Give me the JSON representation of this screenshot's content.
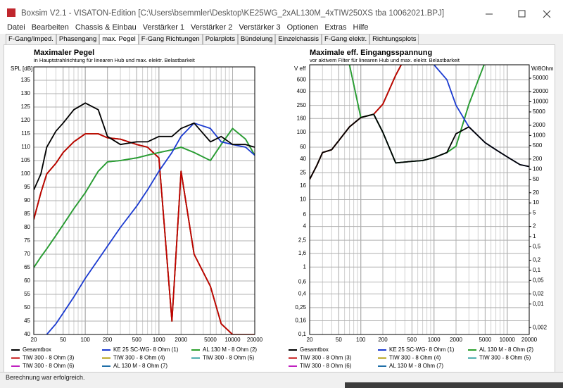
{
  "window_title": "Boxsim V2.1 - VISATON-Edition [C:\\Users\\bsemmler\\Desktop\\KE25WG_2xAL130M_4xTIW250XS tba 10062021.BPJ]",
  "menu": [
    "Datei",
    "Bearbeiten",
    "Chassis & Einbau",
    "Verstärker 1",
    "Verstärker 2",
    "Verstärker 3",
    "Optionen",
    "Extras",
    "Hilfe"
  ],
  "tabs": [
    "F-Gang/Imped.",
    "Phasengang",
    "max. Pegel",
    "F-Gang Richtungen",
    "Polarplots",
    "Bündelung",
    "Einzelchassis",
    "F-Gang elektr.",
    "Richtungsplots"
  ],
  "status": "Berechnung war erfolgreich.",
  "chart_data": [
    {
      "type": "line",
      "title": "Maximaler Pegel",
      "subtitle": "in Hauptstrahlrichtung für linearen Hub und max. elektr. Belastbarkeit",
      "y_label": "SPL [dB]",
      "xlog": true,
      "ylog": false,
      "grid": true,
      "xlim": [
        20,
        20000
      ],
      "xticks": [
        20,
        50,
        100,
        200,
        500,
        1000,
        2000,
        5000,
        10000,
        20000
      ],
      "ylim": [
        40,
        140
      ],
      "yticks": [
        40,
        45,
        50,
        55,
        60,
        65,
        70,
        75,
        80,
        85,
        90,
        95,
        100,
        105,
        110,
        115,
        120,
        125,
        130,
        135
      ],
      "x": [
        20,
        25,
        30,
        40,
        50,
        70,
        100,
        150,
        200,
        300,
        500,
        700,
        1000,
        1500,
        2000,
        3000,
        5000,
        7000,
        10000,
        15000,
        20000
      ],
      "series": [
        {
          "name": "Gesamtbox",
          "color": "#000000",
          "values": [
            94,
            100,
            110,
            116,
            119,
            124,
            126.5,
            124,
            114,
            111,
            112,
            112,
            114,
            114,
            117,
            119,
            112,
            114,
            111,
            111,
            110
          ]
        },
        {
          "name": "KE 25 SC-WG- 8 Ohm (1)",
          "color": "#1a3ad0",
          "values": [
            null,
            null,
            40,
            44,
            48,
            54,
            61,
            68,
            73,
            80,
            88,
            94,
            101,
            108,
            114,
            119,
            117,
            112,
            111,
            110,
            107
          ]
        },
        {
          "name": "AL 130 M - 8 Ohm (2)",
          "color": "#2ca02c",
          "values": [
            65,
            69,
            72,
            77,
            81,
            87,
            93,
            101,
            104.5,
            105,
            106,
            107,
            108,
            109,
            110,
            108,
            105,
            111,
            117,
            113,
            107
          ]
        },
        {
          "name": "TIW 300 - 8 Ohm (3)",
          "color": "#c00000",
          "values": [
            83,
            93,
            100,
            104,
            108,
            112,
            115,
            115,
            113.5,
            113,
            111,
            110,
            106,
            45,
            101,
            70,
            58,
            44,
            40,
            40,
            40
          ]
        },
        {
          "name": "TIW 300 - 8 Ohm (4)",
          "color": "#b09a00",
          "values": [
            83,
            93,
            100,
            104,
            108,
            112,
            115,
            115,
            113.5,
            113,
            111,
            110,
            106,
            45,
            101,
            70,
            58,
            44,
            40,
            40,
            40
          ]
        },
        {
          "name": "TIW 300 - 8 Ohm (5)",
          "color": "#2a9d9d",
          "values": [
            83,
            93,
            100,
            104,
            108,
            112,
            115,
            115,
            113.5,
            113,
            111,
            110,
            106,
            45,
            101,
            70,
            58,
            44,
            40,
            40,
            40
          ]
        },
        {
          "name": "TIW 300 - 8 Ohm (6)",
          "color": "#c020c0",
          "values": [
            83,
            93,
            100,
            104,
            108,
            112,
            115,
            115,
            113.5,
            113,
            111,
            110,
            106,
            45,
            101,
            70,
            58,
            44,
            40,
            40,
            40
          ]
        },
        {
          "name": "AL 130 M - 8 Ohm (7)",
          "color": "#1f6fa8",
          "values": [
            65,
            69,
            72,
            77,
            81,
            87,
            93,
            101,
            104.5,
            105,
            106,
            107,
            108,
            109,
            110,
            108,
            105,
            111,
            117,
            113,
            107
          ]
        }
      ]
    },
    {
      "type": "line",
      "title": "Maximale eff. Eingangsspannung",
      "subtitle": "vor aktivem Filter für linearen Hub und max. elektr. Belastbarkeit",
      "y_label": "V eff",
      "y2_label": "W/8Ohm",
      "xlog": true,
      "ylog": true,
      "y2log": true,
      "grid": true,
      "xlim": [
        20,
        20000
      ],
      "xticks": [
        20,
        50,
        100,
        200,
        500,
        1000,
        2000,
        5000,
        10000,
        20000
      ],
      "ylim": [
        0.1,
        1000
      ],
      "yticks": [
        {
          "value": 0.1,
          "label": "0,1"
        },
        {
          "value": 0.16,
          "label": "0,16"
        },
        {
          "value": 0.25,
          "label": "0,25"
        },
        {
          "value": 0.4,
          "label": "0,4"
        },
        {
          "value": 0.6,
          "label": "0,6"
        },
        1,
        {
          "value": 1.6,
          "label": "1,6"
        },
        {
          "value": 2.5,
          "label": "2,5"
        },
        4,
        6,
        10,
        16,
        25,
        40,
        60,
        100,
        160,
        250,
        400,
        600
      ],
      "y2lim": [
        0.00125,
        125000
      ],
      "y2ticks": [
        {
          "value": 0.002,
          "label": "0,002"
        },
        {
          "value": 0.01,
          "label": "0,01"
        },
        {
          "value": 0.02,
          "label": "0,02"
        },
        {
          "value": 0.05,
          "label": "0,05"
        },
        {
          "value": 0.1,
          "label": "0,1"
        },
        {
          "value": 0.2,
          "label": "0,2"
        },
        {
          "value": 0.5,
          "label": "0,5"
        },
        1,
        2,
        5,
        10,
        20,
        50,
        100,
        200,
        500,
        1000,
        2000,
        5000,
        10000,
        20000,
        50000
      ],
      "x": [
        20,
        25,
        30,
        40,
        50,
        70,
        100,
        150,
        200,
        300,
        500,
        700,
        1000,
        1500,
        2000,
        3000,
        5000,
        7000,
        10000,
        15000,
        20000
      ],
      "series": [
        {
          "name": "Gesamtbox",
          "color": "#000000",
          "values": [
            20,
            32,
            50,
            55,
            75,
            120,
            165,
            185,
            100,
            35,
            37,
            38,
            42,
            50,
            95,
            120,
            70,
            55,
            43,
            33,
            31
          ]
        },
        {
          "name": "KE 25 SC-WG- 8 Ohm (1)",
          "color": "#1a3ad0",
          "values": [
            null,
            null,
            null,
            null,
            null,
            null,
            null,
            null,
            null,
            null,
            null,
            5000,
            1000,
            600,
            250,
            120,
            70,
            55,
            43,
            33,
            31
          ]
        },
        {
          "name": "AL 130 M - 8 Ohm (2)",
          "color": "#2ca02c",
          "values": [
            null,
            null,
            null,
            null,
            null,
            1000,
            165,
            185,
            100,
            35,
            37,
            38,
            42,
            50,
            62,
            260,
            1100,
            3000,
            5000,
            8000,
            10000
          ]
        },
        {
          "name": "TIW 300 - 8 Ohm (3)",
          "color": "#c00000",
          "values": [
            20,
            32,
            50,
            55,
            75,
            120,
            165,
            185,
            260,
            700,
            2000,
            5000,
            null,
            null,
            null,
            null,
            null,
            null,
            null,
            null,
            null
          ]
        },
        {
          "name": "TIW 300 - 8 Ohm (4)",
          "color": "#b09a00",
          "values": [
            20,
            32,
            50,
            55,
            75,
            120,
            165,
            185,
            260,
            700,
            2000,
            5000,
            null,
            null,
            null,
            null,
            null,
            null,
            null,
            null,
            null
          ]
        },
        {
          "name": "TIW 300 - 8 Ohm (5)",
          "color": "#2a9d9d",
          "values": [
            20,
            32,
            50,
            55,
            75,
            120,
            165,
            185,
            260,
            700,
            2000,
            5000,
            null,
            null,
            null,
            null,
            null,
            null,
            null,
            null,
            null
          ]
        },
        {
          "name": "TIW 300 - 8 Ohm (6)",
          "color": "#c020c0",
          "values": [
            20,
            32,
            50,
            55,
            75,
            120,
            165,
            185,
            260,
            700,
            2000,
            5000,
            null,
            null,
            null,
            null,
            null,
            null,
            null,
            null,
            null
          ]
        },
        {
          "name": "AL 130 M - 8 Ohm (7)",
          "color": "#1f6fa8",
          "values": [
            null,
            null,
            null,
            null,
            null,
            1000,
            165,
            185,
            100,
            35,
            37,
            38,
            42,
            50,
            62,
            260,
            1100,
            3000,
            5000,
            8000,
            10000
          ]
        }
      ]
    }
  ]
}
